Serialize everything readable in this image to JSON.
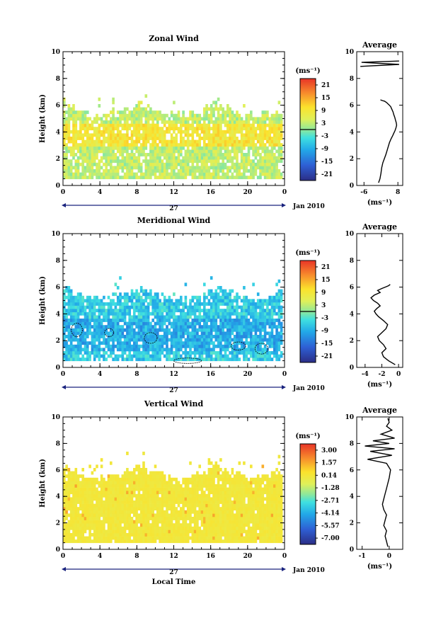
{
  "chart_data": [
    {
      "type": "heatmap",
      "title": "Zonal Wind",
      "ylabel": "Height (km)",
      "xlabel": "",
      "xlim": [
        0,
        24
      ],
      "ylim": [
        0,
        10
      ],
      "x_ticks": [
        "0",
        "4",
        "8",
        "12",
        "16",
        "20",
        "0"
      ],
      "y_ticks": [
        "0",
        "2",
        "4",
        "6",
        "8",
        "10"
      ],
      "day_label": "27",
      "month_label": "Jan 2010",
      "colorbar": {
        "unit": "(ms⁻¹)",
        "ticks": [
          "21",
          "15",
          "9",
          "3",
          "-3",
          "-9",
          "-15",
          "-21"
        ],
        "range": [
          -24,
          24
        ]
      },
      "data_top_km": 6.2,
      "typical_value": 3,
      "average_profile": {
        "title": "Average",
        "xlabel": "(ms⁻¹)",
        "x_ticks": [
          "-6",
          "8"
        ],
        "y_ticks": [
          "0",
          "2",
          "4",
          "6",
          "8",
          "10"
        ],
        "xlim": [
          -9,
          10
        ],
        "ylim": [
          0,
          10
        ],
        "x": [
          0.0,
          0.6,
          1.0,
          1.3,
          1.8,
          2.4,
          3.0,
          3.5,
          4.0,
          4.5,
          5.2,
          5.8,
          6.3,
          6.8,
          7.2,
          7.5,
          7.3,
          7.0,
          6.7,
          6.3,
          6.0,
          5.5,
          5.0,
          4.2,
          3.3,
          2.5,
          1.5,
          0.8
        ],
        "y": [
          0.2,
          0.5,
          0.9,
          1.3,
          1.7,
          2.0,
          2.3,
          2.6,
          2.9,
          3.2,
          3.5,
          3.7,
          3.9,
          4.1,
          4.3,
          4.5,
          4.7,
          4.9,
          5.1,
          5.3,
          5.5,
          5.7,
          5.9,
          6.05,
          6.2,
          6.3,
          6.35,
          6.4
        ],
        "upper_segment": {
          "x": [
            -7.5,
            8.5,
            -7.0,
            8.5
          ],
          "y": [
            8.9,
            9.05,
            9.2,
            9.3
          ]
        }
      }
    },
    {
      "type": "heatmap",
      "title": "Meridional Wind",
      "ylabel": "Height (km)",
      "xlabel": "",
      "xlim": [
        0,
        24
      ],
      "ylim": [
        0,
        10
      ],
      "x_ticks": [
        "0",
        "4",
        "8",
        "12",
        "16",
        "20",
        "0"
      ],
      "y_ticks": [
        "0",
        "2",
        "4",
        "6",
        "8",
        "10"
      ],
      "day_label": "27",
      "month_label": "Jan 2010",
      "colorbar": {
        "unit": "(ms⁻¹)",
        "ticks": [
          "21",
          "15",
          "9",
          "3",
          "-3",
          "-9",
          "-15",
          "-21"
        ],
        "range": [
          -24,
          24
        ]
      },
      "data_top_km": 6.0,
      "typical_value": -6,
      "average_profile": {
        "title": "Average",
        "xlabel": "(ms⁻¹)",
        "x_ticks": [
          "-4",
          "-2",
          "0"
        ],
        "y_ticks": [
          "0",
          "2",
          "4",
          "6",
          "8",
          "10"
        ],
        "xlim": [
          -5,
          0.5
        ],
        "ylim": [
          0,
          10
        ],
        "x": [
          -0.4,
          -1.2,
          -1.8,
          -2.0,
          -1.5,
          -1.8,
          -2.3,
          -2.5,
          -2.0,
          -1.5,
          -1.3,
          -1.8,
          -2.4,
          -2.7,
          -2.9,
          -2.6,
          -2.2,
          -2.5,
          -3.0,
          -3.3,
          -2.9,
          -2.2,
          -2.5,
          -2.0,
          -1.6,
          -1.2,
          -1.0
        ],
        "y": [
          0.2,
          0.5,
          0.8,
          1.1,
          1.4,
          1.7,
          2.0,
          2.3,
          2.6,
          2.9,
          3.2,
          3.5,
          3.8,
          4.0,
          4.2,
          4.4,
          4.6,
          4.8,
          5.0,
          5.2,
          5.4,
          5.6,
          5.75,
          5.9,
          6.0,
          6.1,
          6.2
        ]
      }
    },
    {
      "type": "heatmap",
      "title": "Vertical Wind",
      "ylabel": "Height (km)",
      "xlabel": "Local Time",
      "xlim": [
        0,
        24
      ],
      "ylim": [
        0,
        10
      ],
      "x_ticks": [
        "0",
        "4",
        "8",
        "12",
        "16",
        "20",
        "0"
      ],
      "y_ticks": [
        "0",
        "2",
        "4",
        "6",
        "8",
        "10"
      ],
      "day_label": "27",
      "month_label": "Jan 2010",
      "colorbar": {
        "unit": "(ms⁻¹)",
        "ticks": [
          "3.00",
          "1.57",
          "0.14",
          "-1.28",
          "-2.71",
          "-4.14",
          "-5.57",
          "-7.00"
        ],
        "range": [
          -8.43,
          4.43
        ]
      },
      "data_top_km": 6.4,
      "typical_value": 0.3,
      "average_profile": {
        "title": "Average",
        "xlabel": "(ms⁻¹)",
        "x_ticks": [
          "-1",
          "0"
        ],
        "y_ticks": [
          "0",
          "2",
          "4",
          "6",
          "8",
          "10"
        ],
        "xlim": [
          -1.2,
          0.5
        ],
        "ylim": [
          0,
          10
        ],
        "x": [
          -0.05,
          -0.1,
          -0.15,
          -0.1,
          -0.2,
          -0.15,
          -0.1,
          -0.2,
          -0.25,
          -0.2,
          -0.15,
          -0.1,
          -0.05,
          0.0,
          0.05,
          -0.1,
          -0.8,
          0.1,
          -0.7,
          0.2,
          -0.9,
          0.0,
          -0.6,
          0.2,
          -0.3,
          0.1,
          -0.1,
          0.0,
          -0.05
        ],
        "y": [
          0.2,
          0.6,
          1.0,
          1.4,
          1.8,
          2.2,
          2.6,
          3.0,
          3.4,
          3.8,
          4.2,
          4.6,
          5.0,
          5.4,
          6.0,
          6.5,
          6.8,
          7.1,
          7.4,
          7.6,
          7.8,
          8.0,
          8.2,
          8.4,
          8.7,
          9.0,
          9.3,
          9.6,
          9.9
        ]
      }
    }
  ]
}
